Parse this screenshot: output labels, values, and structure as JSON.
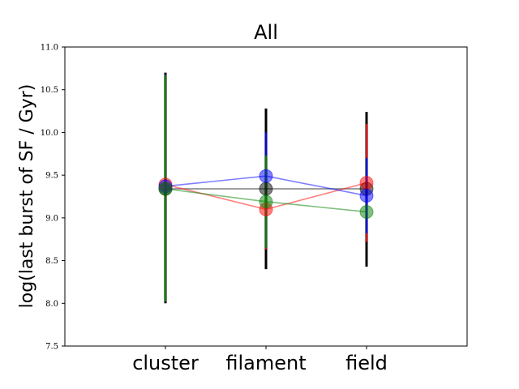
{
  "chart_data": {
    "type": "scatter",
    "title": "All",
    "xlabel": "",
    "ylabel": "log(last burst of SF / Gyr)",
    "categories": [
      "cluster",
      "filament",
      "field"
    ],
    "ylim": [
      7.5,
      11.0
    ],
    "yticks": [
      "7.5",
      "8.0",
      "8.5",
      "9.0",
      "9.5",
      "10.0",
      "10.5",
      "11.0"
    ],
    "grid": false,
    "series": [
      {
        "color": "#000000",
        "values": [
          9.34,
          9.34,
          9.34
        ],
        "lower": [
          8.0,
          8.4,
          8.43
        ],
        "upper": [
          10.7,
          10.28,
          10.24
        ]
      },
      {
        "color": "#ff0000",
        "values": [
          9.39,
          9.1,
          9.41
        ],
        "lower": [
          8.02,
          8.63,
          8.72
        ],
        "upper": [
          10.68,
          9.78,
          10.1
        ]
      },
      {
        "color": "#0000ff",
        "values": [
          9.37,
          9.49,
          9.26
        ],
        "lower": [
          8.02,
          9.03,
          8.82
        ],
        "upper": [
          10.68,
          10.0,
          9.7
        ]
      },
      {
        "color": "#008000",
        "values": [
          9.34,
          9.19,
          9.07
        ],
        "lower": [
          8.02,
          8.65,
          9.07
        ],
        "upper": [
          10.67,
          9.73,
          9.07
        ]
      }
    ]
  }
}
